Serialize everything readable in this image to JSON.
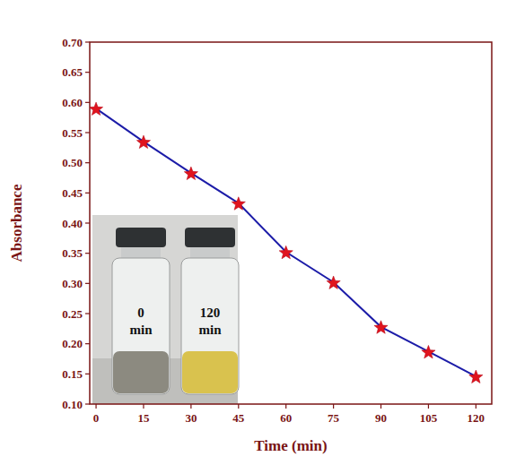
{
  "chart_data": {
    "type": "line",
    "x_label": "Time (min)",
    "y_label": "Absorbance",
    "x": [
      0,
      15,
      30,
      45,
      60,
      75,
      90,
      105,
      120
    ],
    "series": [
      {
        "color": "#1c1ca8",
        "marker": "star",
        "line_style": "solid",
        "values": [
          0.59,
          0.535,
          0.483,
          0.433,
          0.352,
          0.302,
          0.228,
          0.187,
          0.146
        ]
      }
    ],
    "xlim": [
      -2,
      125
    ],
    "xticks": [
      0,
      15,
      30,
      45,
      60,
      75,
      90,
      105,
      120
    ],
    "ylim": [
      0.1,
      0.7
    ],
    "yticks": [
      {
        "value": 0.1,
        "label": "0.10"
      },
      0.15,
      {
        "value": 0.2,
        "label": "0.20"
      },
      0.25,
      {
        "value": 0.3,
        "label": "0.30"
      },
      0.35,
      {
        "value": 0.4,
        "label": "0.40"
      },
      0.45,
      {
        "value": 0.5,
        "label": "0.50"
      },
      0.55,
      {
        "value": 0.6,
        "label": "0.60"
      },
      0.65,
      {
        "value": 0.7,
        "label": "0.70"
      }
    ],
    "grid": false,
    "annotations": [
      "0 min",
      "120 min"
    ]
  }
}
